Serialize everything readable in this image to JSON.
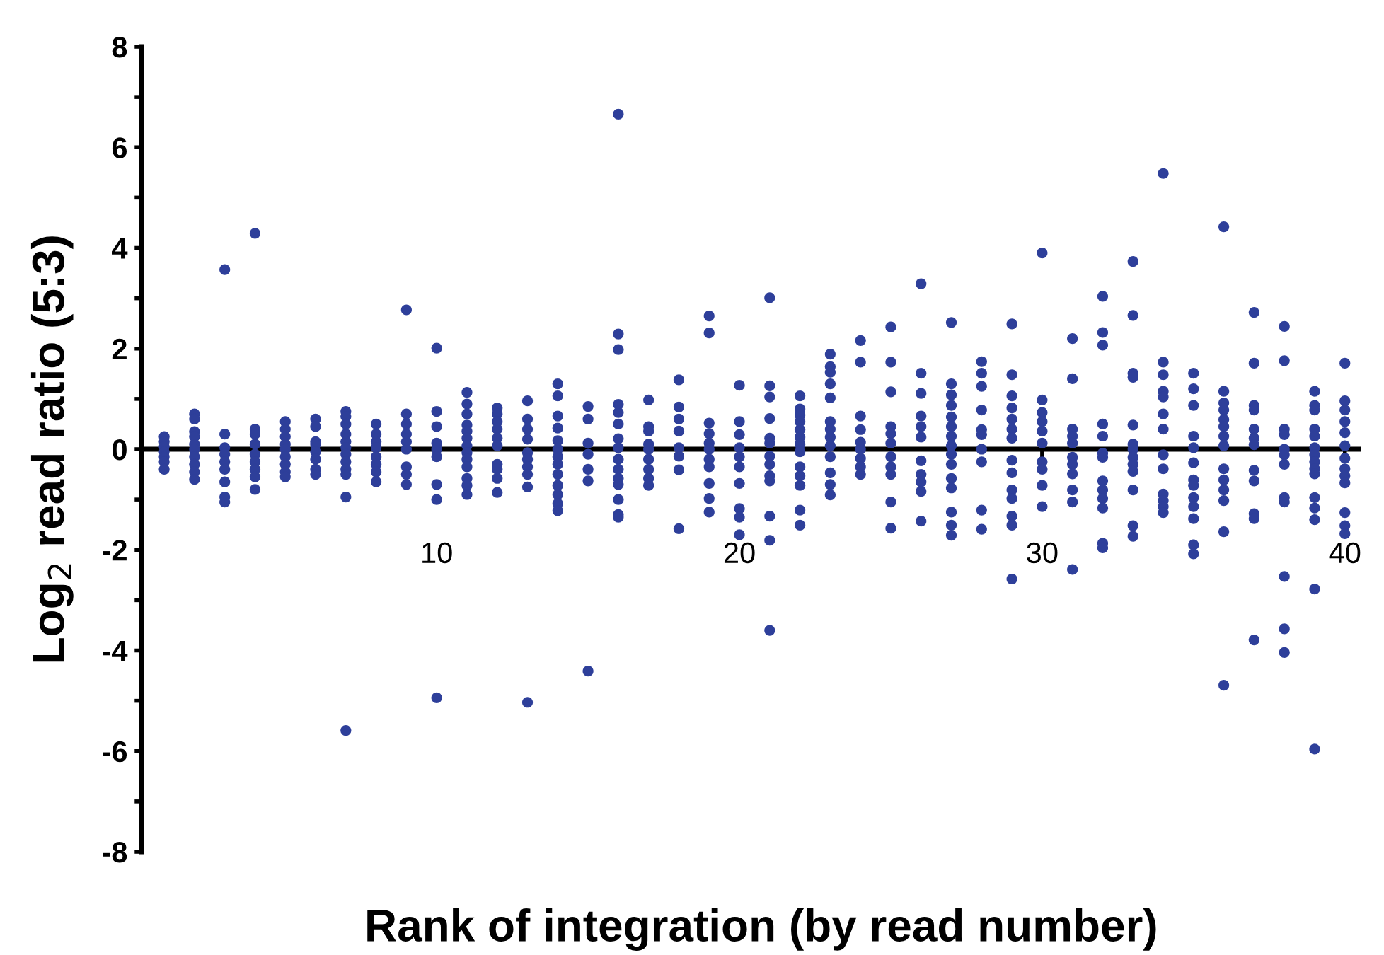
{
  "chart_data": {
    "type": "scatter",
    "xlabel": "Rank of integration (by read number)",
    "ylabel": "Log$_{2}$ read ratio (5:3)",
    "xlim": [
      0.25,
      40.45
    ],
    "xticks": [
      10,
      20,
      30,
      40
    ],
    "ylim": [
      -8,
      8
    ],
    "yticks": [
      {
        "value": -8,
        "label": "-8"
      },
      {
        "value": -7,
        "label": null
      },
      {
        "value": -6,
        "label": "-6"
      },
      {
        "value": -5,
        "label": null
      },
      {
        "value": -4,
        "label": "-4"
      },
      {
        "value": -3,
        "label": null
      },
      {
        "value": -2,
        "label": "-2"
      },
      {
        "value": -1,
        "label": null
      },
      0,
      {
        "value": 1,
        "label": null
      },
      2,
      {
        "value": 3,
        "label": null
      },
      4,
      {
        "value": 5,
        "label": null
      },
      6,
      {
        "value": 7,
        "label": null
      },
      8
    ],
    "marker": "circle",
    "series": [
      {
        "color": "#2e3f9a",
        "x": [
          1,
          1,
          1,
          1,
          1,
          1,
          1,
          2,
          2,
          2,
          2,
          2,
          2,
          2,
          2,
          2,
          2,
          3,
          3,
          3,
          3,
          3,
          3,
          3,
          3,
          3,
          4,
          4,
          4,
          4,
          4,
          4,
          4,
          4,
          4,
          5,
          5,
          5,
          5,
          5,
          5,
          5,
          5,
          5,
          6,
          6,
          6,
          6,
          6,
          6,
          6,
          6,
          7,
          7,
          7,
          7,
          7,
          7,
          7,
          7,
          7,
          7,
          7,
          7,
          8,
          8,
          8,
          8,
          8,
          8,
          8,
          8,
          9,
          9,
          9,
          9,
          9,
          9,
          9,
          9,
          9,
          10,
          10,
          10,
          10,
          10,
          10,
          10,
          10,
          10,
          11,
          11,
          11,
          11,
          11,
          11,
          11,
          11,
          11,
          11,
          11,
          11,
          11,
          12,
          12,
          12,
          12,
          12,
          12,
          12,
          12,
          12,
          12,
          13,
          13,
          13,
          13,
          13,
          13,
          13,
          13,
          13,
          13,
          14,
          14,
          14,
          14,
          14,
          14,
          14,
          14,
          14,
          14,
          14,
          14,
          14,
          15,
          15,
          15,
          15,
          15,
          15,
          15,
          16,
          16,
          16,
          16,
          16,
          16,
          16,
          16,
          16,
          16,
          16,
          16,
          16,
          16,
          16,
          17,
          17,
          17,
          17,
          17,
          17,
          17,
          17,
          17,
          18,
          18,
          18,
          18,
          18,
          18,
          18,
          18,
          19,
          19,
          19,
          19,
          19,
          19,
          19,
          19,
          19,
          19,
          19,
          20,
          20,
          20,
          20,
          20,
          20,
          20,
          20,
          20,
          20,
          21,
          21,
          21,
          21,
          21,
          21,
          21,
          21,
          21,
          21,
          21,
          21,
          21,
          22,
          22,
          22,
          22,
          22,
          22,
          22,
          22,
          22,
          22,
          22,
          22,
          22,
          23,
          23,
          23,
          23,
          23,
          23,
          23,
          23,
          23,
          23,
          23,
          23,
          23,
          24,
          24,
          24,
          24,
          24,
          24,
          24,
          24,
          24,
          25,
          25,
          25,
          25,
          25,
          25,
          25,
          25,
          25,
          25,
          25,
          26,
          26,
          26,
          26,
          26,
          26,
          26,
          26,
          26,
          26,
          26,
          27,
          27,
          27,
          27,
          27,
          27,
          27,
          27,
          27,
          27,
          27,
          27,
          27,
          27,
          27,
          28,
          28,
          28,
          28,
          28,
          28,
          28,
          28,
          28,
          28,
          29,
          29,
          29,
          29,
          29,
          29,
          29,
          29,
          29,
          29,
          29,
          29,
          29,
          29,
          30,
          30,
          30,
          30,
          30,
          30,
          30,
          30,
          30,
          30,
          31,
          31,
          31,
          31,
          31,
          31,
          31,
          31,
          31,
          31,
          31,
          32,
          32,
          32,
          32,
          32,
          32,
          32,
          32,
          32,
          32,
          32,
          32,
          32,
          33,
          33,
          33,
          33,
          33,
          33,
          33,
          33,
          33,
          33,
          33,
          33,
          33,
          34,
          34,
          34,
          34,
          34,
          34,
          34,
          34,
          34,
          34,
          34,
          34,
          34,
          35,
          35,
          35,
          35,
          35,
          35,
          35,
          35,
          35,
          35,
          35,
          35,
          35,
          36,
          36,
          36,
          36,
          36,
          36,
          36,
          36,
          36,
          36,
          36,
          36,
          36,
          36,
          37,
          37,
          37,
          37,
          37,
          37,
          37,
          37,
          37,
          37,
          37,
          37,
          38,
          38,
          38,
          38,
          38,
          38,
          38,
          38,
          38,
          38,
          38,
          38,
          39,
          39,
          39,
          39,
          39,
          39,
          39,
          39,
          39,
          39,
          39,
          39,
          39,
          39,
          39,
          40,
          40,
          40,
          40,
          40,
          40,
          40,
          40,
          40,
          40,
          40,
          40,
          40
        ],
        "values": [
          0.25,
          0.15,
          0.05,
          -0.05,
          -0.15,
          -0.25,
          -0.4,
          0.7,
          0.6,
          0.35,
          0.25,
          0.1,
          0,
          -0.15,
          -0.3,
          -0.45,
          -0.6,
          3.57,
          0.3,
          0.03,
          -0.1,
          -0.25,
          -0.4,
          -0.65,
          -0.95,
          -1.05,
          4.29,
          0.4,
          0.3,
          0.1,
          -0.1,
          -0.25,
          -0.4,
          -0.55,
          -0.8,
          0.55,
          0.4,
          0.25,
          0.1,
          0,
          -0.15,
          -0.3,
          -0.45,
          -0.55,
          0.6,
          0.45,
          0.15,
          0.1,
          -0.05,
          -0.2,
          -0.4,
          -0.5,
          0.75,
          0.65,
          0.5,
          0.3,
          0.15,
          0.03,
          -0.1,
          -0.25,
          -0.4,
          -0.5,
          -0.95,
          -5.59,
          0.5,
          0.3,
          0.15,
          0.03,
          -0.15,
          -0.3,
          -0.45,
          -0.65,
          2.77,
          0.7,
          0.5,
          0.3,
          0.15,
          0,
          -0.35,
          -0.5,
          -0.7,
          2.01,
          0.75,
          0.45,
          0.12,
          0,
          -0.15,
          -0.7,
          -1.0,
          -4.94,
          1.13,
          0.9,
          0.7,
          0.48,
          0.36,
          0.22,
          0.07,
          -0.07,
          -0.2,
          -0.35,
          -0.58,
          -0.72,
          -0.9,
          0.82,
          0.7,
          0.55,
          0.4,
          0.22,
          0.07,
          -0.3,
          -0.4,
          -0.58,
          -0.86,
          0.96,
          0.6,
          0.4,
          0.2,
          -0.07,
          -0.2,
          -0.35,
          -0.5,
          -0.75,
          -5.03,
          1.3,
          1.06,
          0.66,
          0.42,
          0.17,
          0,
          -0.15,
          -0.3,
          -0.5,
          -0.72,
          -0.9,
          -1.08,
          -1.22,
          0.85,
          0.6,
          0.12,
          -0.1,
          -0.4,
          -0.63,
          -4.41,
          6.66,
          2.29,
          1.98,
          0.89,
          0.73,
          0.5,
          0.21,
          0.03,
          -0.2,
          -0.4,
          -0.58,
          -0.7,
          -1.0,
          -1.3,
          -1.35,
          0.98,
          0.45,
          0.36,
          0.1,
          0,
          -0.2,
          -0.4,
          -0.58,
          -0.72,
          1.38,
          0.84,
          0.6,
          0.36,
          0.03,
          -0.14,
          -0.41,
          -1.58,
          2.65,
          2.31,
          0.52,
          0.31,
          0.12,
          0,
          -0.2,
          -0.35,
          -0.68,
          -0.98,
          -1.25,
          1.27,
          0.55,
          0.29,
          0.03,
          -0.15,
          -0.35,
          -0.68,
          -1.18,
          -1.35,
          -1.7,
          3.01,
          1.26,
          1.04,
          0.61,
          0.22,
          0.12,
          -0.14,
          -0.3,
          -0.53,
          -0.63,
          -1.33,
          -1.81,
          -3.6,
          1.06,
          0.8,
          0.68,
          0.55,
          0.39,
          0.24,
          0.1,
          -0.05,
          -0.35,
          -0.53,
          -0.72,
          -1.21,
          -1.51,
          1.89,
          1.64,
          1.53,
          1.3,
          1.02,
          0.55,
          0.4,
          0.24,
          0.07,
          -0.15,
          -0.47,
          -0.7,
          -0.91,
          2.16,
          1.73,
          0.66,
          0.39,
          0.14,
          0,
          -0.18,
          -0.35,
          -0.5,
          2.43,
          1.73,
          1.14,
          0.45,
          0.31,
          0.12,
          -0.15,
          -0.35,
          -0.5,
          -1.05,
          -1.57,
          3.29,
          1.51,
          1.11,
          0.66,
          0.45,
          0.24,
          -0.23,
          -0.5,
          -0.65,
          -0.84,
          -1.43,
          2.52,
          1.3,
          1.08,
          0.87,
          0.64,
          0.45,
          0.26,
          0.07,
          -0.1,
          -0.3,
          -0.58,
          -0.77,
          -1.25,
          -1.51,
          -1.71,
          1.74,
          1.51,
          1.25,
          0.78,
          0.39,
          0.29,
          0,
          -0.25,
          -1.21,
          -1.59,
          2.49,
          1.48,
          1.06,
          0.82,
          0.6,
          0.4,
          0.22,
          -0.22,
          -0.47,
          -0.81,
          -0.98,
          -1.33,
          -1.51,
          -2.58,
          3.9,
          0.98,
          0.73,
          0.55,
          0.36,
          0.12,
          -0.25,
          -0.4,
          -0.72,
          -1.14,
          2.2,
          1.4,
          0.4,
          0.26,
          0.12,
          -0.16,
          -0.3,
          -0.49,
          -0.81,
          -1.05,
          -2.39,
          3.04,
          2.32,
          2.07,
          0.5,
          0.26,
          -0.08,
          -0.16,
          -0.63,
          -0.81,
          -0.98,
          -1.17,
          -1.87,
          -1.96,
          3.73,
          2.66,
          1.51,
          1.43,
          0.48,
          0.1,
          0,
          -0.16,
          -0.3,
          -0.44,
          -0.81,
          -1.52,
          -1.73,
          5.48,
          1.73,
          1.48,
          1.15,
          1.04,
          0.7,
          0.4,
          -0.11,
          -0.39,
          -0.89,
          -1.02,
          -1.14,
          -1.26,
          1.51,
          1.2,
          0.87,
          0.26,
          0.03,
          -0.27,
          -0.61,
          -0.72,
          -0.96,
          -1.14,
          -1.38,
          -1.9,
          -2.08,
          4.42,
          1.15,
          0.92,
          0.78,
          0.59,
          0.45,
          0.26,
          0.07,
          -0.39,
          -0.61,
          -0.81,
          -1.02,
          -1.64,
          -4.69,
          2.72,
          1.71,
          0.87,
          0.78,
          0.4,
          0.22,
          0.09,
          -0.42,
          -0.63,
          -1.28,
          -1.38,
          -3.79,
          2.44,
          1.76,
          0.4,
          0.29,
          0,
          -0.11,
          -0.3,
          -0.96,
          -1.05,
          -2.53,
          -3.57,
          -4.04,
          1.15,
          0.87,
          0.78,
          0.4,
          0.26,
          0.03,
          -0.11,
          -0.25,
          -0.39,
          -0.49,
          -0.96,
          -1.17,
          -1.4,
          -2.78,
          -5.96,
          1.71,
          0.96,
          0.78,
          0.55,
          0.33,
          0.07,
          -0.18,
          -0.39,
          -0.53,
          -0.67,
          -1.26,
          -1.52,
          -1.68
        ]
      }
    ]
  }
}
